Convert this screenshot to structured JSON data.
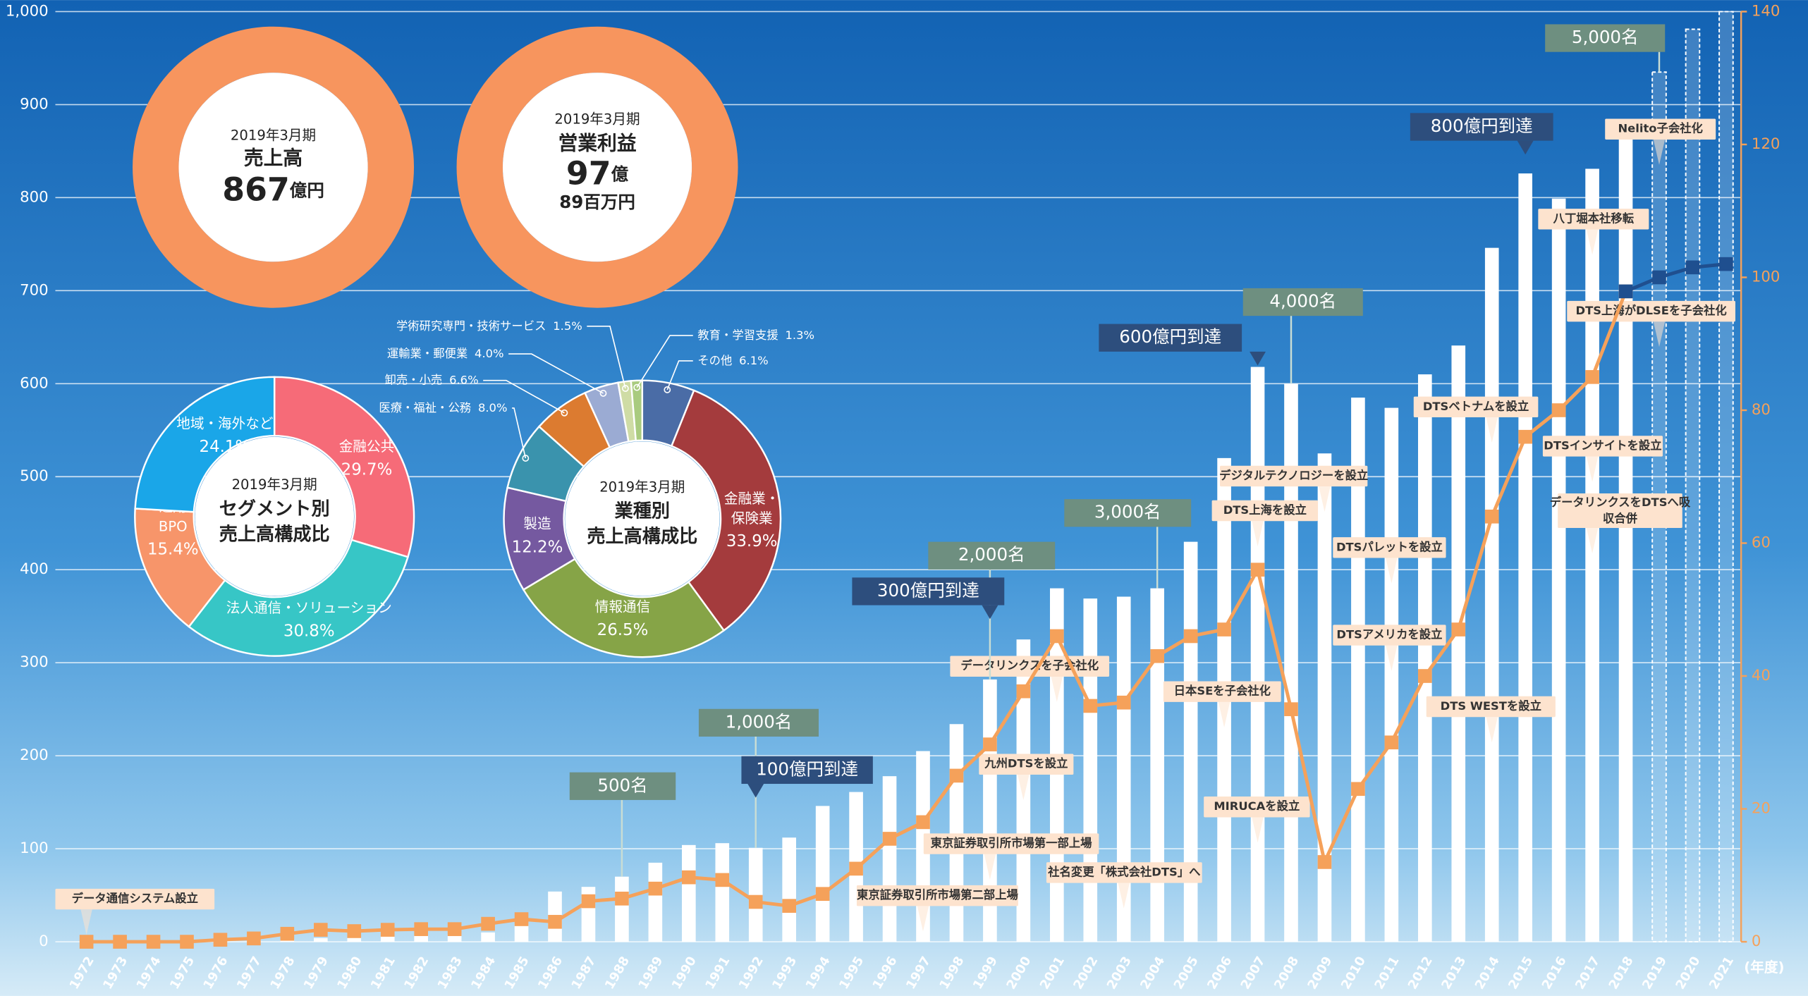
{
  "chart_data": [
    {
      "type": "bar_line",
      "categories": [
        "1972",
        "1973",
        "1974",
        "1975",
        "1976",
        "1977",
        "1978",
        "1979",
        "1980",
        "1981",
        "1982",
        "1983",
        "1984",
        "1985",
        "1986",
        "1987",
        "1988",
        "1989",
        "1990",
        "1991",
        "1992",
        "1993",
        "1994",
        "1995",
        "1996",
        "1997",
        "1998",
        "1999",
        "2000",
        "2001",
        "2002",
        "2003",
        "2004",
        "2005",
        "2006",
        "2007",
        "2008",
        "2009",
        "2010",
        "2011",
        "2012",
        "2013",
        "2014",
        "2015",
        "2016",
        "2017",
        "2018",
        "2019",
        "2020",
        "2021"
      ],
      "x_label": "(年度)",
      "ylim": [
        0,
        1000
      ],
      "yticks": [
        0,
        100,
        200,
        300,
        400,
        500,
        600,
        700,
        800,
        900,
        {
          "value": 1000,
          "label": "1,000"
        }
      ],
      "y2lim": [
        0,
        140
      ],
      "y2ticks": [
        0,
        20,
        40,
        60,
        80,
        100,
        120,
        140
      ],
      "grid": true,
      "series": [
        {
          "type": "bar",
          "style": "solid",
          "color": "#ffffff",
          "values": [
            0,
            0,
            0,
            0,
            1,
            2,
            3,
            4,
            5,
            6,
            7,
            8,
            10,
            20,
            54,
            59,
            70,
            85,
            104,
            106,
            101,
            112,
            146,
            161,
            178,
            205,
            234,
            282,
            325,
            380,
            369,
            371,
            380,
            430,
            520,
            618,
            600,
            525,
            585,
            574,
            610,
            641,
            746,
            826,
            799,
            831,
            867,
            null,
            null,
            null
          ]
        },
        {
          "type": "bar",
          "style": "dashed",
          "color": "#ffffff",
          "values": [
            null,
            null,
            null,
            null,
            null,
            null,
            null,
            null,
            null,
            null,
            null,
            null,
            null,
            null,
            null,
            null,
            null,
            null,
            null,
            null,
            null,
            null,
            null,
            null,
            null,
            null,
            null,
            null,
            null,
            null,
            null,
            null,
            null,
            null,
            null,
            null,
            null,
            null,
            null,
            null,
            null,
            null,
            null,
            null,
            null,
            null,
            null,
            935,
            981,
            1000
          ]
        },
        {
          "type": "line",
          "axis": "y2",
          "color": "#f5a15a",
          "values": [
            0,
            0,
            0,
            0,
            0.3,
            0.5,
            1.2,
            1.8,
            1.6,
            1.8,
            1.9,
            1.9,
            2.7,
            3.4,
            3,
            6.1,
            6.5,
            8,
            9.7,
            9.3,
            6,
            5.4,
            7.2,
            11,
            15.5,
            18,
            25,
            29.7,
            37.7,
            46,
            35.5,
            36,
            43,
            46,
            47,
            56,
            35,
            12,
            23,
            30,
            40,
            47,
            64,
            76,
            80,
            85,
            97.89,
            null,
            null,
            null
          ]
        },
        {
          "type": "line",
          "axis": "y2",
          "color": "#1f4f8f",
          "values": [
            null,
            null,
            null,
            null,
            null,
            null,
            null,
            null,
            null,
            null,
            null,
            null,
            null,
            null,
            null,
            null,
            null,
            null,
            null,
            null,
            null,
            null,
            null,
            null,
            null,
            null,
            null,
            null,
            null,
            null,
            null,
            null,
            null,
            null,
            null,
            null,
            null,
            null,
            null,
            null,
            null,
            null,
            null,
            null,
            null,
            null,
            97.89,
            100,
            101.5,
            102
          ]
        }
      ],
      "staff_milestones": [
        {
          "category": "1988",
          "text": "500名"
        },
        {
          "category": "1992",
          "text": "1,000名"
        },
        {
          "category": "1999",
          "text": "2,000名"
        },
        {
          "category": "2004",
          "text": "3,000名"
        },
        {
          "category": "2008",
          "text": "4,000名"
        },
        {
          "category": "2019",
          "text": "5,000名"
        }
      ],
      "sales_milestones": [
        {
          "category": "1992",
          "text": "100億円到達"
        },
        {
          "category": "1999",
          "text": "300億円到達"
        },
        {
          "category": "2007",
          "text": "600億円到達"
        },
        {
          "category": "2015",
          "text": "800億円到達"
        }
      ],
      "events": [
        {
          "category": "1972",
          "text": "データ通信システム設立"
        },
        {
          "category": "1997",
          "text": "東京証券取引所市場第二部上場"
        },
        {
          "category": "1999",
          "text": "東京証券取引所市場第一部上場"
        },
        {
          "category": "2000",
          "text": "九州DTSを設立"
        },
        {
          "category": "2001",
          "text": "データリンクスを子会社化"
        },
        {
          "category": "2003",
          "text": "社名変更「株式会社DTS」へ"
        },
        {
          "category": "2006",
          "text": "日本SEを子会社化"
        },
        {
          "category": "2007",
          "text": "DTS上海を設立"
        },
        {
          "category": "2007",
          "text": "MIRUCAを設立"
        },
        {
          "category": "2009",
          "text": "デジタルテクノロジーを設立"
        },
        {
          "category": "2011",
          "text": "DTSパレットを設立"
        },
        {
          "category": "2011",
          "text": "DTSアメリカを設立"
        },
        {
          "category": "2014",
          "text": "DTSベトナムを設立"
        },
        {
          "category": "2014",
          "text": "DTS WESTを設立"
        },
        {
          "category": "2017",
          "text": "八丁堀本社移転"
        },
        {
          "category": "2017",
          "text": "DTSインサイトを設立"
        },
        {
          "category": "2017",
          "text": "データリンクスをDTSへ吸収合併"
        },
        {
          "category": "2019",
          "text": "DTS上海がDLSEを子会社化"
        },
        {
          "category": "2019",
          "text": "Nelito子会社化"
        }
      ]
    },
    {
      "type": "ring",
      "color": "#f7955e",
      "period": "2019年3月期",
      "title": "売上高",
      "value": 867,
      "unit": "億円"
    },
    {
      "type": "ring",
      "color": "#f7955e",
      "period": "2019年3月期",
      "title": "営業利益",
      "value": 97,
      "unit": "億",
      "sub": "89百万円"
    },
    {
      "type": "donut",
      "period": "2019年3月期",
      "title": "セグメント別",
      "subtitle": "売上高構成比",
      "categories": [
        "金融公共",
        "法人通信・ソリューション",
        "運用BPO",
        "地域・海外など"
      ],
      "values": [
        29.7,
        30.8,
        15.4,
        24.1
      ],
      "value_labels": [
        "29.7%",
        "30.8%",
        "15.4%",
        "24.1%"
      ],
      "colors": [
        "#f66b78",
        "#37c6c6",
        "#f7956a",
        "#1aa6e8"
      ]
    },
    {
      "type": "donut",
      "period": "2019年3月期",
      "title": "業種別",
      "subtitle": "売上高構成比",
      "categories": [
        "その他",
        "金融業・保険業",
        "情報通信",
        "製造",
        "医療・福祉・公務",
        "卸売・小売",
        "運輸業・郵便業",
        "学術研究専門・技術サービス",
        "教育・学習支援"
      ],
      "values": [
        6.1,
        33.9,
        26.5,
        12.2,
        8.0,
        6.6,
        4.0,
        1.5,
        1.3
      ],
      "value_labels": [
        "6.1%",
        "33.9%",
        "26.5%",
        "12.2%",
        "8.0%",
        "6.6%",
        "4.0%",
        "1.5%",
        "1.3%"
      ],
      "colors": [
        "#4a6ca6",
        "#a43b3d",
        "#86a447",
        "#7559a0",
        "#3a93ad",
        "#dc7b30",
        "#9babd3",
        "#cfdca5",
        "#a9cb7f"
      ]
    }
  ]
}
